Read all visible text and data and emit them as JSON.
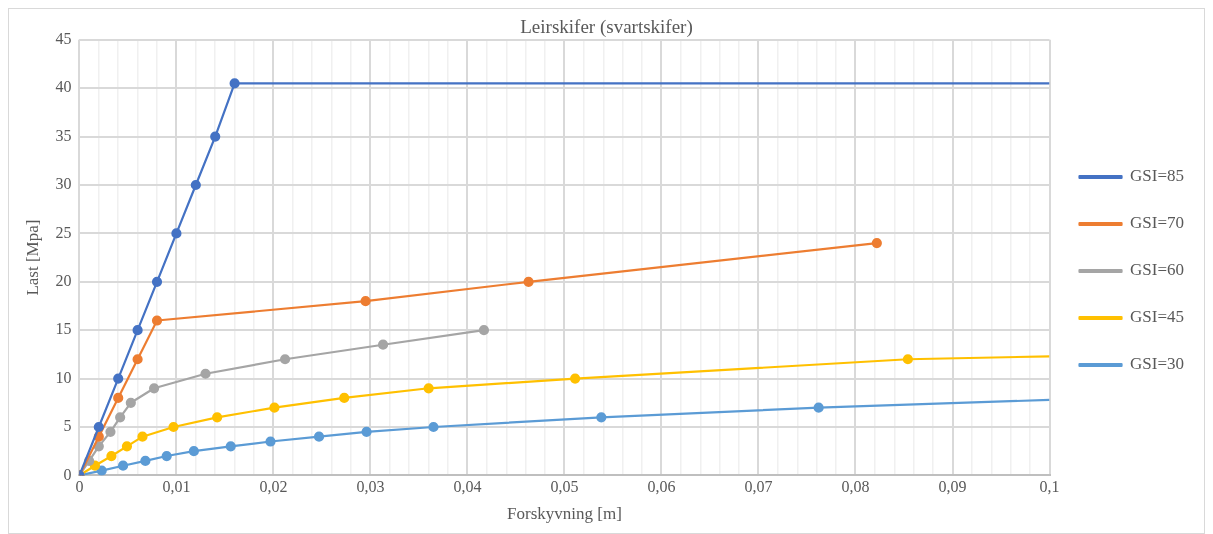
{
  "chart_data": {
    "type": "line",
    "title": "Leirskifer (svartskifer)",
    "xlabel": "Forskyvning [m]",
    "ylabel": "Last [Mpa]",
    "xlim": [
      0,
      0.1
    ],
    "ylim": [
      0,
      45
    ],
    "xticks": [
      0,
      {
        "value": 0.002,
        "label": null
      },
      {
        "value": 0.004,
        "label": null
      },
      {
        "value": 0.006,
        "label": null
      },
      {
        "value": 0.008,
        "label": null
      },
      {
        "value": 0.01,
        "label": "0,01"
      },
      {
        "value": 0.012,
        "label": null
      },
      {
        "value": 0.014,
        "label": null
      },
      {
        "value": 0.016,
        "label": null
      },
      {
        "value": 0.018,
        "label": null
      },
      {
        "value": 0.02,
        "label": "0,02"
      },
      {
        "value": 0.022,
        "label": null
      },
      {
        "value": 0.024,
        "label": null
      },
      {
        "value": 0.026,
        "label": null
      },
      {
        "value": 0.028,
        "label": null
      },
      {
        "value": 0.03,
        "label": "0,03"
      },
      {
        "value": 0.032,
        "label": null
      },
      {
        "value": 0.034,
        "label": null
      },
      {
        "value": 0.036,
        "label": null
      },
      {
        "value": 0.038,
        "label": null
      },
      {
        "value": 0.04,
        "label": "0,04"
      },
      {
        "value": 0.042,
        "label": null
      },
      {
        "value": 0.044,
        "label": null
      },
      {
        "value": 0.046,
        "label": null
      },
      {
        "value": 0.048,
        "label": null
      },
      {
        "value": 0.05,
        "label": "0,05"
      },
      {
        "value": 0.052,
        "label": null
      },
      {
        "value": 0.054,
        "label": null
      },
      {
        "value": 0.056,
        "label": null
      },
      {
        "value": 0.058,
        "label": null
      },
      {
        "value": 0.06,
        "label": "0,06"
      },
      {
        "value": 0.062,
        "label": null
      },
      {
        "value": 0.064,
        "label": null
      },
      {
        "value": 0.066,
        "label": null
      },
      {
        "value": 0.068,
        "label": null
      },
      {
        "value": 0.07,
        "label": "0,07"
      },
      {
        "value": 0.072,
        "label": null
      },
      {
        "value": 0.074,
        "label": null
      },
      {
        "value": 0.076,
        "label": null
      },
      {
        "value": 0.078,
        "label": null
      },
      {
        "value": 0.08,
        "label": "0,08"
      },
      {
        "value": 0.082,
        "label": null
      },
      {
        "value": 0.084,
        "label": null
      },
      {
        "value": 0.086,
        "label": null
      },
      {
        "value": 0.088,
        "label": null
      },
      {
        "value": 0.09,
        "label": "0,09"
      },
      {
        "value": 0.092,
        "label": null
      },
      {
        "value": 0.094,
        "label": null
      },
      {
        "value": 0.096,
        "label": null
      },
      {
        "value": 0.098,
        "label": null
      },
      {
        "value": 0.1,
        "label": "0,1"
      }
    ],
    "yticks": [
      0,
      5,
      10,
      15,
      20,
      25,
      30,
      35,
      40,
      45
    ],
    "grid": true,
    "legend": "right",
    "marker": "circle",
    "line_style": "solid",
    "series": [
      {
        "name": "GSI=85",
        "color": "#4472c4",
        "x": [
          0,
          0.002,
          0.004,
          0.006,
          0.008,
          0.01,
          0.012,
          0.014,
          0.016,
          0.1
        ],
        "values": [
          0,
          5,
          10,
          15,
          20,
          25,
          30,
          35,
          40.5,
          40.5
        ]
      },
      {
        "name": "GSI=70",
        "color": "#ed7d31",
        "x": [
          0,
          0.002,
          0.004,
          0.006,
          0.008,
          0.0295,
          0.0463,
          0.0822
        ],
        "values": [
          0,
          4,
          8,
          12,
          16,
          18,
          20,
          24
        ]
      },
      {
        "name": "GSI=60",
        "color": "#a5a5a5",
        "x": [
          0,
          0.001,
          0.002,
          0.0032,
          0.0042,
          0.0053,
          0.0077,
          0.013,
          0.0212,
          0.0313,
          0.0417
        ],
        "values": [
          0,
          1.5,
          3,
          4.5,
          6,
          7.5,
          9,
          10.5,
          12,
          13.5,
          15
        ]
      },
      {
        "name": "GSI=45",
        "color": "#ffc000",
        "x": [
          0,
          0.0016,
          0.0033,
          0.0049,
          0.0065,
          0.0097,
          0.0142,
          0.0201,
          0.0273,
          0.036,
          0.0511,
          0.0854,
          0.1
        ],
        "values": [
          0,
          1,
          2,
          3,
          4,
          5,
          6,
          7,
          8,
          9,
          10,
          12,
          12.3
        ]
      },
      {
        "name": "GSI=30",
        "color": "#5b9bd5",
        "x": [
          0,
          0.0023,
          0.0045,
          0.0068,
          0.009,
          0.0118,
          0.0156,
          0.0197,
          0.0247,
          0.0296,
          0.0365,
          0.0538,
          0.0762,
          0.1
        ],
        "values": [
          0,
          0.5,
          1,
          1.5,
          2,
          2.5,
          3,
          3.5,
          4,
          4.5,
          5,
          6,
          7,
          7.8
        ]
      }
    ]
  }
}
